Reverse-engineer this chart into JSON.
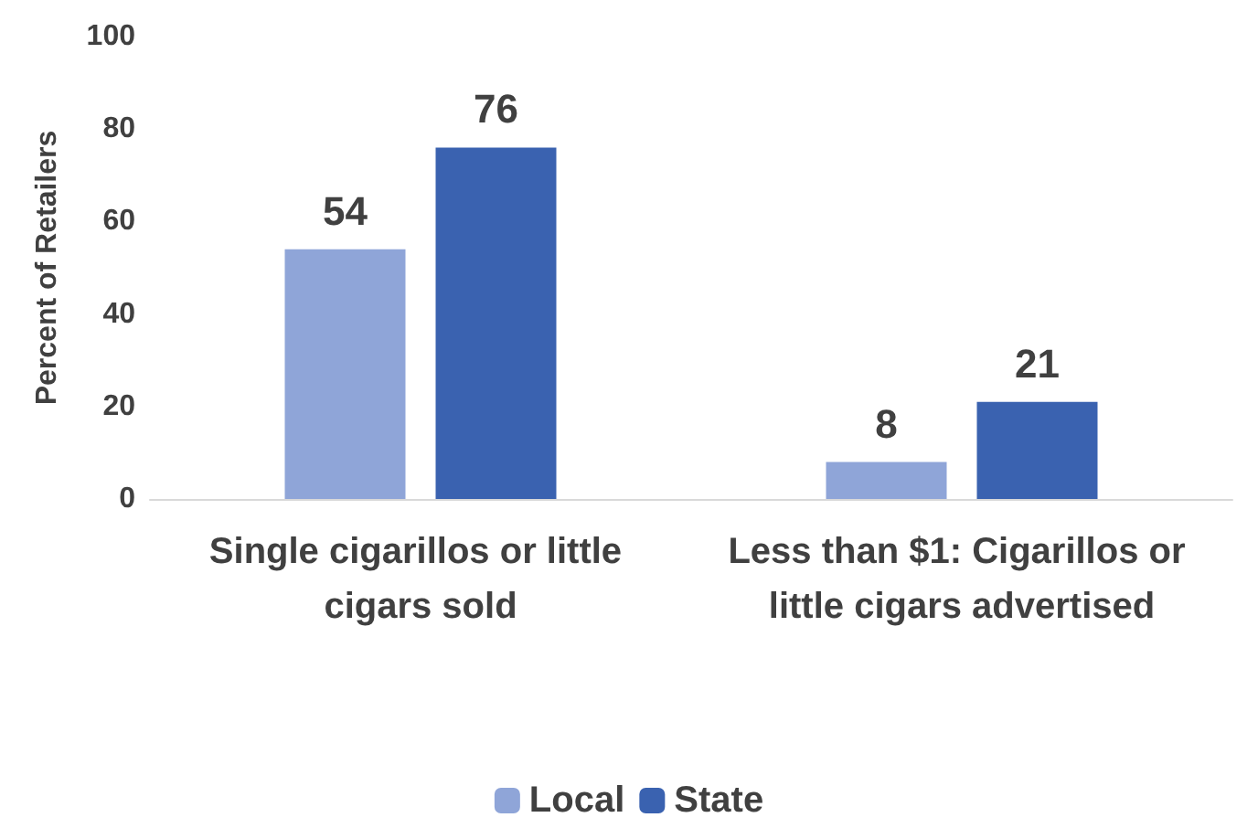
{
  "chart_data": {
    "type": "bar",
    "ylabel": "Percent of Retailers",
    "categories": [
      "Single cigarillos or little cigars sold",
      "Less than $1: Cigarillos or little cigars advertised"
    ],
    "series": [
      {
        "name": "Local",
        "color": "#8fa5d8",
        "values": [
          54,
          8
        ]
      },
      {
        "name": "State",
        "color": "#3a62b0",
        "values": [
          76,
          21
        ]
      }
    ],
    "ylim": [
      0,
      100
    ],
    "yticks": [
      0,
      20,
      40,
      60,
      80,
      100
    ],
    "grid": false,
    "legend": "bottom",
    "data_labels": true
  }
}
